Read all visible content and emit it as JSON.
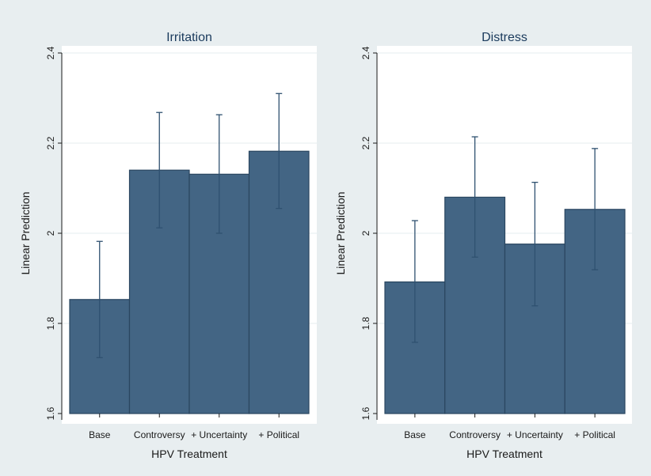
{
  "chart_data": [
    {
      "type": "bar",
      "title": "Irritation",
      "xlabel": "HPV Treatment",
      "ylabel": "Linear Prediction",
      "categories": [
        "Base",
        "Controversy",
        "+ Uncertainty",
        "+ Political"
      ],
      "values": [
        1.853,
        2.14,
        2.131,
        2.182
      ],
      "ci_lower": [
        1.724,
        2.012,
        2.0,
        2.055
      ],
      "ci_upper": [
        1.982,
        2.268,
        2.263,
        2.31
      ],
      "ylim": [
        1.6,
        2.4
      ],
      "yticks": [
        "1.6",
        "1.8",
        "2",
        "2.2",
        "2.4"
      ],
      "grid": true,
      "bar_color": "#436584",
      "errorbar_color": "#2f5170"
    },
    {
      "type": "bar",
      "title": "Distress",
      "xlabel": "HPV Treatment",
      "ylabel": "Linear Prediction",
      "categories": [
        "Base",
        "Controversy",
        "+ Uncertainty",
        "+ Political"
      ],
      "values": [
        1.892,
        2.08,
        1.976,
        2.053
      ],
      "ci_lower": [
        1.758,
        1.947,
        1.839,
        1.919
      ],
      "ci_upper": [
        2.028,
        2.214,
        2.113,
        2.188
      ],
      "ylim": [
        1.6,
        2.4
      ],
      "yticks": [
        "1.6",
        "1.8",
        "2",
        "2.2",
        "2.4"
      ],
      "grid": true,
      "bar_color": "#436584",
      "errorbar_color": "#2f5170"
    }
  ]
}
